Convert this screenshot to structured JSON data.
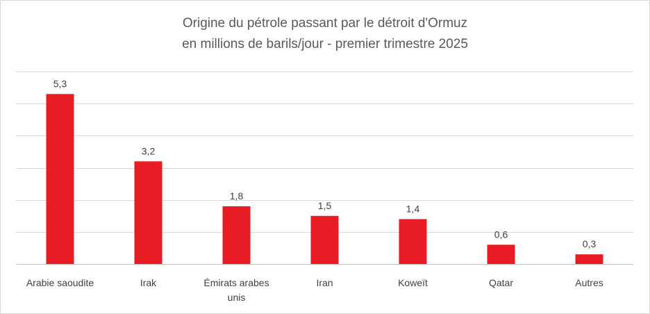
{
  "chart_data": {
    "type": "bar",
    "title": "Origine du pétrole passant par le détroit d'Ormuz",
    "subtitle": "en millions de barils/jour - premier trimestre 2025",
    "categories": [
      "Arabie saoudite",
      "Irak",
      "Émirats arabes unis",
      "Iran",
      "Koweït",
      "Qatar",
      "Autres"
    ],
    "category_lines": [
      [
        "Arabie saoudite"
      ],
      [
        "Irak"
      ],
      [
        "Émirats arabes",
        "unis"
      ],
      [
        "Iran"
      ],
      [
        "Koweït"
      ],
      [
        "Qatar"
      ],
      [
        "Autres"
      ]
    ],
    "values": [
      5.3,
      3.2,
      1.8,
      1.5,
      1.4,
      0.6,
      0.3
    ],
    "value_labels": [
      "5,3",
      "3,2",
      "1,8",
      "1,5",
      "1,4",
      "0,6",
      "0,3"
    ],
    "ylim": [
      0,
      6
    ],
    "grid": true,
    "legend": "none",
    "bar_color": "#e81c24"
  }
}
